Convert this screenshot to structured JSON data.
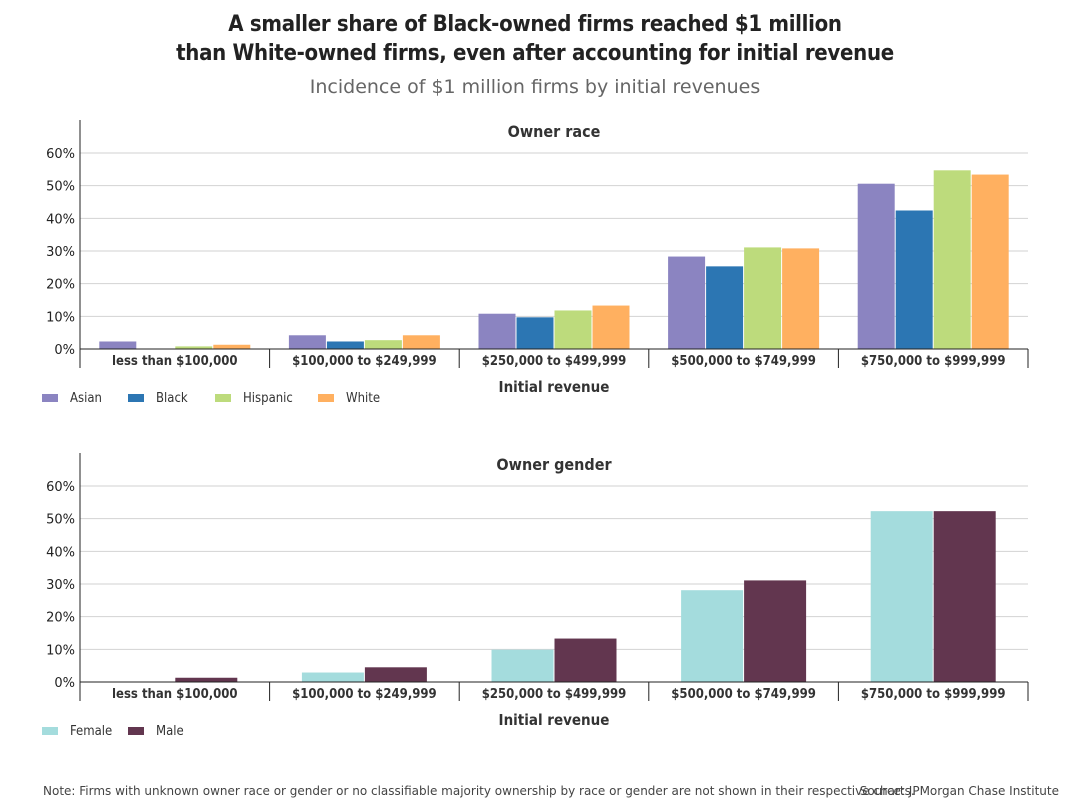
{
  "title_line1": "A smaller share of Black-owned firms reached $1 million",
  "title_line2": "than White-owned firms, even after accounting for initial revenue",
  "subtitle": "Incidence of $1 million firms by initial revenues",
  "note": "Note: Firms with unknown owner race or gender or no classifiable majority ownership by race or gender are not shown in their respective charts.",
  "source": "Source: JPMorgan Chase Institute",
  "chart_data": [
    {
      "type": "bar",
      "title": "Owner race",
      "xlabel": "Initial revenue",
      "ylabel": "",
      "ylim": [
        0,
        0.6
      ],
      "yticks": [
        "0%",
        "10%",
        "20%",
        "30%",
        "40%",
        "50%",
        "60%"
      ],
      "legend_placement": "bottom-left",
      "grid": true,
      "categories": [
        "less than $100,000",
        "$100,000 to $249,999",
        "$250,000 to $499,999",
        "$500,000 to $749,999",
        "$750,000 to $999,999"
      ],
      "series": [
        {
          "name": "Asian",
          "color": "#8b84c1",
          "values": [
            0.023,
            0.042,
            0.108,
            0.283,
            0.506
          ]
        },
        {
          "name": "Black",
          "color": "#2c76b3",
          "values": [
            0.0,
            0.023,
            0.097,
            0.253,
            0.424
          ]
        },
        {
          "name": "Hispanic",
          "color": "#bddb7c",
          "values": [
            0.008,
            0.027,
            0.118,
            0.311,
            0.547
          ]
        },
        {
          "name": "White",
          "color": "#ffb060",
          "values": [
            0.013,
            0.042,
            0.133,
            0.308,
            0.534
          ]
        }
      ]
    },
    {
      "type": "bar",
      "title": "Owner gender",
      "xlabel": "Initial revenue",
      "ylabel": "",
      "ylim": [
        0,
        0.6
      ],
      "yticks": [
        "0%",
        "10%",
        "20%",
        "30%",
        "40%",
        "50%",
        "60%"
      ],
      "legend_placement": "bottom-left",
      "grid": true,
      "categories": [
        "less than $100,000",
        "$100,000 to $249,999",
        "$250,000 to $499,999",
        "$500,000 to $749,999",
        "$750,000 to $999,999"
      ],
      "series": [
        {
          "name": "Female",
          "color": "#a4dcdd",
          "values": [
            0.0,
            0.029,
            0.099,
            0.281,
            0.523
          ]
        },
        {
          "name": "Male",
          "color": "#62364f",
          "values": [
            0.013,
            0.045,
            0.133,
            0.311,
            0.523
          ]
        }
      ]
    }
  ]
}
